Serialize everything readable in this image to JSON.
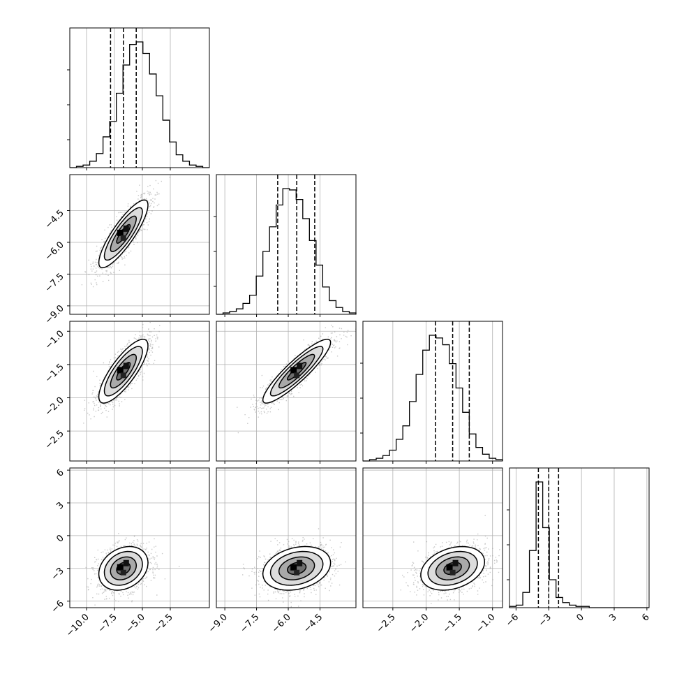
{
  "chart_data": {
    "type": "corner",
    "parameters": [
      {
        "index": 0,
        "range": [
          -11.5,
          1.0
        ],
        "ticks": [
          "-10.0",
          "-7.5",
          "-5.0",
          "-2.5"
        ],
        "tick_values": [
          -10.0,
          -7.5,
          -5.0,
          -2.5
        ],
        "mean": -6.7,
        "sd": 1.1,
        "quantiles": [
          -7.85,
          -6.7,
          -5.55
        ],
        "hist_counts": [
          0,
          1,
          2,
          5,
          11,
          24,
          36,
          58,
          80,
          96,
          98,
          89,
          73,
          56,
          37,
          20,
          10,
          5,
          2,
          1,
          0
        ]
      },
      {
        "index": 1,
        "range": [
          -9.4,
          -2.8
        ],
        "ticks": [
          "-9.0",
          "-7.5",
          "-6.0",
          "-4.5"
        ],
        "tick_values": [
          -9.0,
          -7.5,
          -6.0,
          -4.5
        ],
        "mean": -5.6,
        "sd": 0.8,
        "quantiles": [
          -6.5,
          -5.6,
          -4.75
        ],
        "hist_counts": [
          0,
          1,
          2,
          4,
          8,
          14,
          28,
          46,
          64,
          80,
          92,
          91,
          84,
          70,
          54,
          36,
          20,
          10,
          5,
          2,
          1
        ]
      },
      {
        "index": 2,
        "range": [
          -2.95,
          -0.85
        ],
        "ticks": [
          "-2.5",
          "-2.0",
          "-1.5",
          "-1.0"
        ],
        "tick_values": [
          -2.5,
          -2.0,
          -1.5,
          -1.0
        ],
        "mean": -1.6,
        "sd": 0.24,
        "quantiles": [
          -1.86,
          -1.6,
          -1.35
        ],
        "hist_counts": [
          0,
          1,
          2,
          4,
          8,
          16,
          26,
          44,
          64,
          82,
          93,
          91,
          86,
          72,
          54,
          36,
          20,
          10,
          5,
          2,
          1
        ]
      },
      {
        "index": 3,
        "range": [
          -6.6,
          6.2
        ],
        "ticks": [
          "-6",
          "-3",
          "0",
          "3",
          "6"
        ],
        "tick_values": [
          -6,
          -3,
          0,
          3,
          6
        ],
        "mean": -3.0,
        "sd": 1.0,
        "quantiles": [
          -3.95,
          -3.0,
          -2.1
        ],
        "hist_counts": [
          1,
          2,
          12,
          45,
          99,
          63,
          22,
          8,
          4,
          2,
          1,
          1,
          0,
          0,
          0,
          0,
          0,
          0,
          0,
          0,
          0
        ]
      }
    ],
    "correlations": {
      "1_0": 0.85,
      "2_0": 0.8,
      "2_1": 0.9,
      "3_0": 0.25,
      "3_1": 0.25,
      "3_2": 0.3
    },
    "colors": {
      "line": "#000000",
      "grid": "#b0b0b0",
      "scatter": "#9a9a9a",
      "fill": "#4d4d4d"
    }
  }
}
